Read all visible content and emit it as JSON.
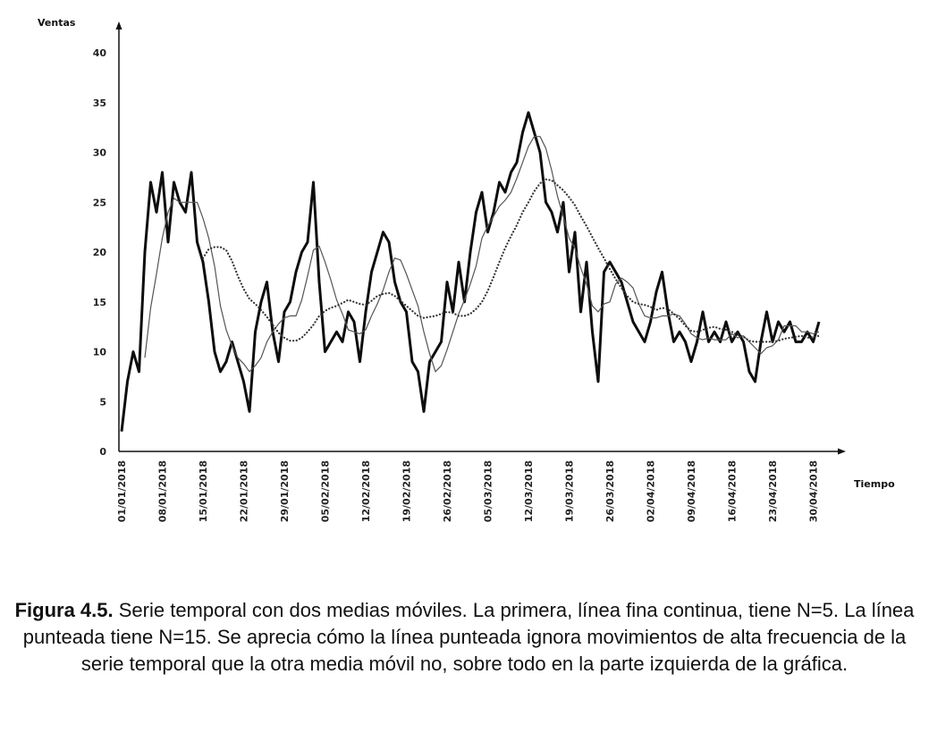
{
  "chart_data": {
    "type": "line",
    "ylabel": "Ventas",
    "xlabel": "Tiempo",
    "ylim": [
      0,
      40
    ],
    "yticks": [
      "0",
      "5",
      "10",
      "15",
      "20",
      "25",
      "30",
      "35",
      "40"
    ],
    "x_tick_labels": [
      "01/01/2018",
      "08/01/2018",
      "15/01/2018",
      "22/01/2018",
      "29/01/2018",
      "05/02/2018",
      "12/02/2018",
      "19/02/2018",
      "26/02/2018",
      "05/03/2018",
      "12/03/2018",
      "19/03/2018",
      "26/03/2018",
      "02/04/2018",
      "09/04/2018",
      "16/04/2018",
      "23/04/2018",
      "30/04/2018"
    ],
    "grid": false,
    "x_start": "01/01/2018",
    "series": [
      {
        "style": "thick-solid",
        "values": [
          2,
          7,
          10,
          8,
          20,
          27,
          24,
          28,
          21,
          27,
          25,
          24,
          28,
          21,
          19,
          15,
          10,
          8,
          9,
          11,
          9,
          7,
          4,
          12,
          15,
          17,
          12,
          9,
          14,
          15,
          18,
          20,
          21,
          27,
          17,
          10,
          11,
          12,
          11,
          14,
          13,
          9,
          14,
          18,
          20,
          22,
          21,
          17,
          15,
          14,
          9,
          8,
          4,
          9,
          10,
          11,
          17,
          14,
          19,
          15,
          20,
          24,
          26,
          22,
          24,
          27,
          26,
          28,
          29,
          32,
          34,
          32,
          30,
          25,
          24,
          22,
          25,
          18,
          22,
          14,
          19,
          12,
          7,
          18,
          19,
          18,
          17,
          15,
          13,
          12,
          11,
          13,
          16,
          18,
          14,
          11,
          12,
          11,
          9,
          11,
          14,
          11,
          12,
          11,
          13,
          11,
          12,
          11,
          8,
          7,
          11,
          14,
          11,
          13,
          12,
          13,
          11,
          11,
          12,
          11,
          13
        ],
        "stroke": "#0d0d0d"
      },
      {
        "style": "thin-solid",
        "values": [
          null,
          null,
          null,
          null,
          9.4,
          14.4,
          17.8,
          21.4,
          24.0,
          25.4,
          25.0,
          25.0,
          25.0,
          25.0,
          23.4,
          21.4,
          18.6,
          14.6,
          12.2,
          10.6,
          9.4,
          8.8,
          8.0,
          8.6,
          9.4,
          11.0,
          12.0,
          12.8,
          13.4,
          13.6,
          13.6,
          15.2,
          17.6,
          20.2,
          20.6,
          19.0,
          17.2,
          15.2,
          13.8,
          12.2,
          12.0,
          11.8,
          12.2,
          13.6,
          14.8,
          16.2,
          18.0,
          19.4,
          19.2,
          17.8,
          16.2,
          14.6,
          12.0,
          9.8,
          8.0,
          8.6,
          10.2,
          12.0,
          13.8,
          15.2,
          16.8,
          18.6,
          21.4,
          22.6,
          23.6,
          24.6,
          25.2,
          26.0,
          27.4,
          29.0,
          30.6,
          31.6,
          31.6,
          30.4,
          28.2,
          25.6,
          23.6,
          21.4,
          20.4,
          18.4,
          16.8,
          14.6,
          14.0,
          14.8,
          15.0,
          16.8,
          17.4,
          17.0,
          16.4,
          14.8,
          13.6,
          13.4,
          13.4,
          13.6,
          13.6,
          13.8,
          13.6,
          12.8,
          11.8,
          11.4,
          11.2,
          11.4,
          11.2,
          11.2,
          11.2,
          11.8,
          11.4,
          11.6,
          11.0,
          10.4,
          9.8,
          10.4,
          10.6,
          11.2,
          12.6,
          12.6,
          12.6,
          12.0,
          12.0,
          11.8,
          12.0
        ],
        "stroke": "#555555"
      },
      {
        "style": "dotted",
        "values": [
          null,
          null,
          null,
          null,
          null,
          null,
          null,
          null,
          null,
          null,
          null,
          null,
          null,
          null,
          19.4,
          20.3,
          20.5,
          20.5,
          20.2,
          19.1,
          17.6,
          16.3,
          15.3,
          14.8,
          14.2,
          13.5,
          12.7,
          11.9,
          11.4,
          11.1,
          11.1,
          11.4,
          12.0,
          12.7,
          13.6,
          14.1,
          14.4,
          14.6,
          14.9,
          15.2,
          15.0,
          14.8,
          14.7,
          15.1,
          15.6,
          15.8,
          15.9,
          15.6,
          15.1,
          14.6,
          14.1,
          13.6,
          13.4,
          13.5,
          13.6,
          13.8,
          14.0,
          13.9,
          13.6,
          13.6,
          13.8,
          14.3,
          15.0,
          16.1,
          17.5,
          19.0,
          20.4,
          21.6,
          22.7,
          24.0,
          25.0,
          26.1,
          26.9,
          27.3,
          27.2,
          26.7,
          26.2,
          25.5,
          24.7,
          23.6,
          22.6,
          21.5,
          20.4,
          19.4,
          18.3,
          17.3,
          16.4,
          15.6,
          15.0,
          14.8,
          14.7,
          14.5,
          14.2,
          14.4,
          14.3,
          13.8,
          13.3,
          12.6,
          12.1,
          12.0,
          12.2,
          12.4,
          12.5,
          12.3,
          12.2,
          12.0,
          11.7,
          11.5,
          11.1,
          11.0,
          11.0,
          11.0,
          11.0,
          11.1,
          11.3,
          11.4,
          11.5,
          11.6,
          11.4,
          11.5,
          11.6
        ],
        "stroke": "#333333"
      }
    ]
  },
  "caption": {
    "label": "Figura 4.5.",
    "text": " Serie temporal con dos medias móviles. La primera, línea fina continua, tiene N=5. La línea punteada tiene N=15. Se aprecia cómo la línea punteada ignora movimientos de alta frecuencia de la serie temporal que la otra media móvil no, sobre todo en la parte izquierda de la gráfica."
  }
}
